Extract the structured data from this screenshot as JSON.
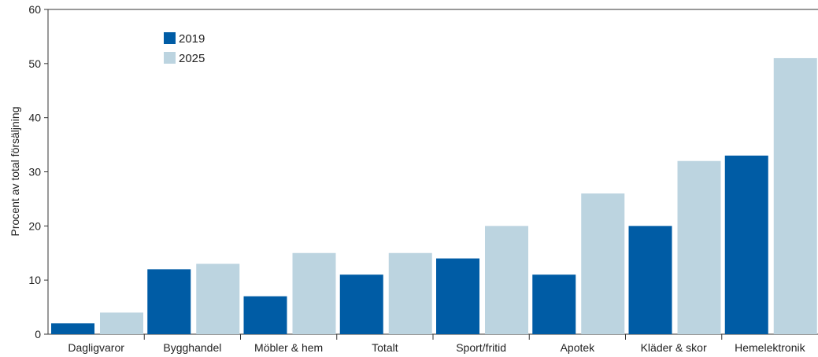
{
  "chart_data": {
    "type": "bar",
    "title": "",
    "xlabel": "",
    "ylabel": "Procent av total försäljning",
    "ylim": [
      0,
      60
    ],
    "yticks": [
      0,
      10,
      20,
      30,
      40,
      50,
      60
    ],
    "grid": false,
    "legend_position": "top-left",
    "categories": [
      "Dagligvaror",
      "Bygghandel",
      "Möbler & hem",
      "Totalt",
      "Sport/fritid",
      "Apotek",
      "Kläder & skor",
      "Hemelektronik"
    ],
    "series": [
      {
        "name": "2019",
        "color": "#005ca5",
        "values": [
          2,
          12,
          7,
          11,
          14,
          11,
          20,
          33
        ]
      },
      {
        "name": "2025",
        "color": "#bcd4e0",
        "values": [
          4,
          13,
          15,
          15,
          20,
          26,
          32,
          51
        ]
      }
    ]
  }
}
